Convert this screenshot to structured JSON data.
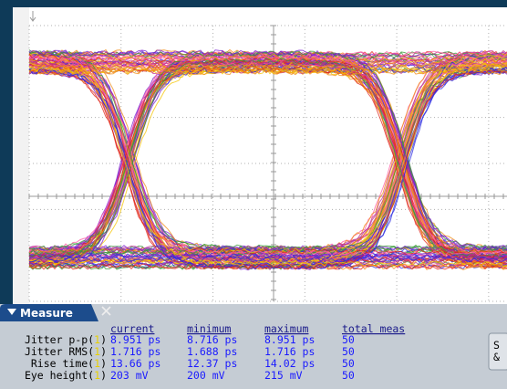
{
  "panel": {
    "title": "Measure",
    "headers": [
      "current",
      "minimum",
      "maximum",
      "total meas"
    ],
    "rows": [
      {
        "prefix": "Jitter p-p(",
        "channel": "1",
        "suffix": ")",
        "cells": [
          "8.951 ps",
          "8.716 ps",
          "8.951 ps",
          "50"
        ]
      },
      {
        "prefix": "Jitter RMS(",
        "channel": "1",
        "suffix": ")",
        "cells": [
          "1.716 ps",
          "1.688 ps",
          "1.716 ps",
          "50"
        ]
      },
      {
        "prefix": "Rise time(",
        "channel": "1",
        "suffix": ")",
        "cells": [
          "13.66 ps",
          "12.37 ps",
          "14.02 ps",
          "50"
        ]
      },
      {
        "prefix": "Eye height(",
        "channel": "1",
        "suffix": ")",
        "cells": [
          "203 mV",
          "200 mV",
          "215 mV",
          "50"
        ]
      }
    ],
    "side_button": [
      "S",
      "&"
    ]
  }
}
